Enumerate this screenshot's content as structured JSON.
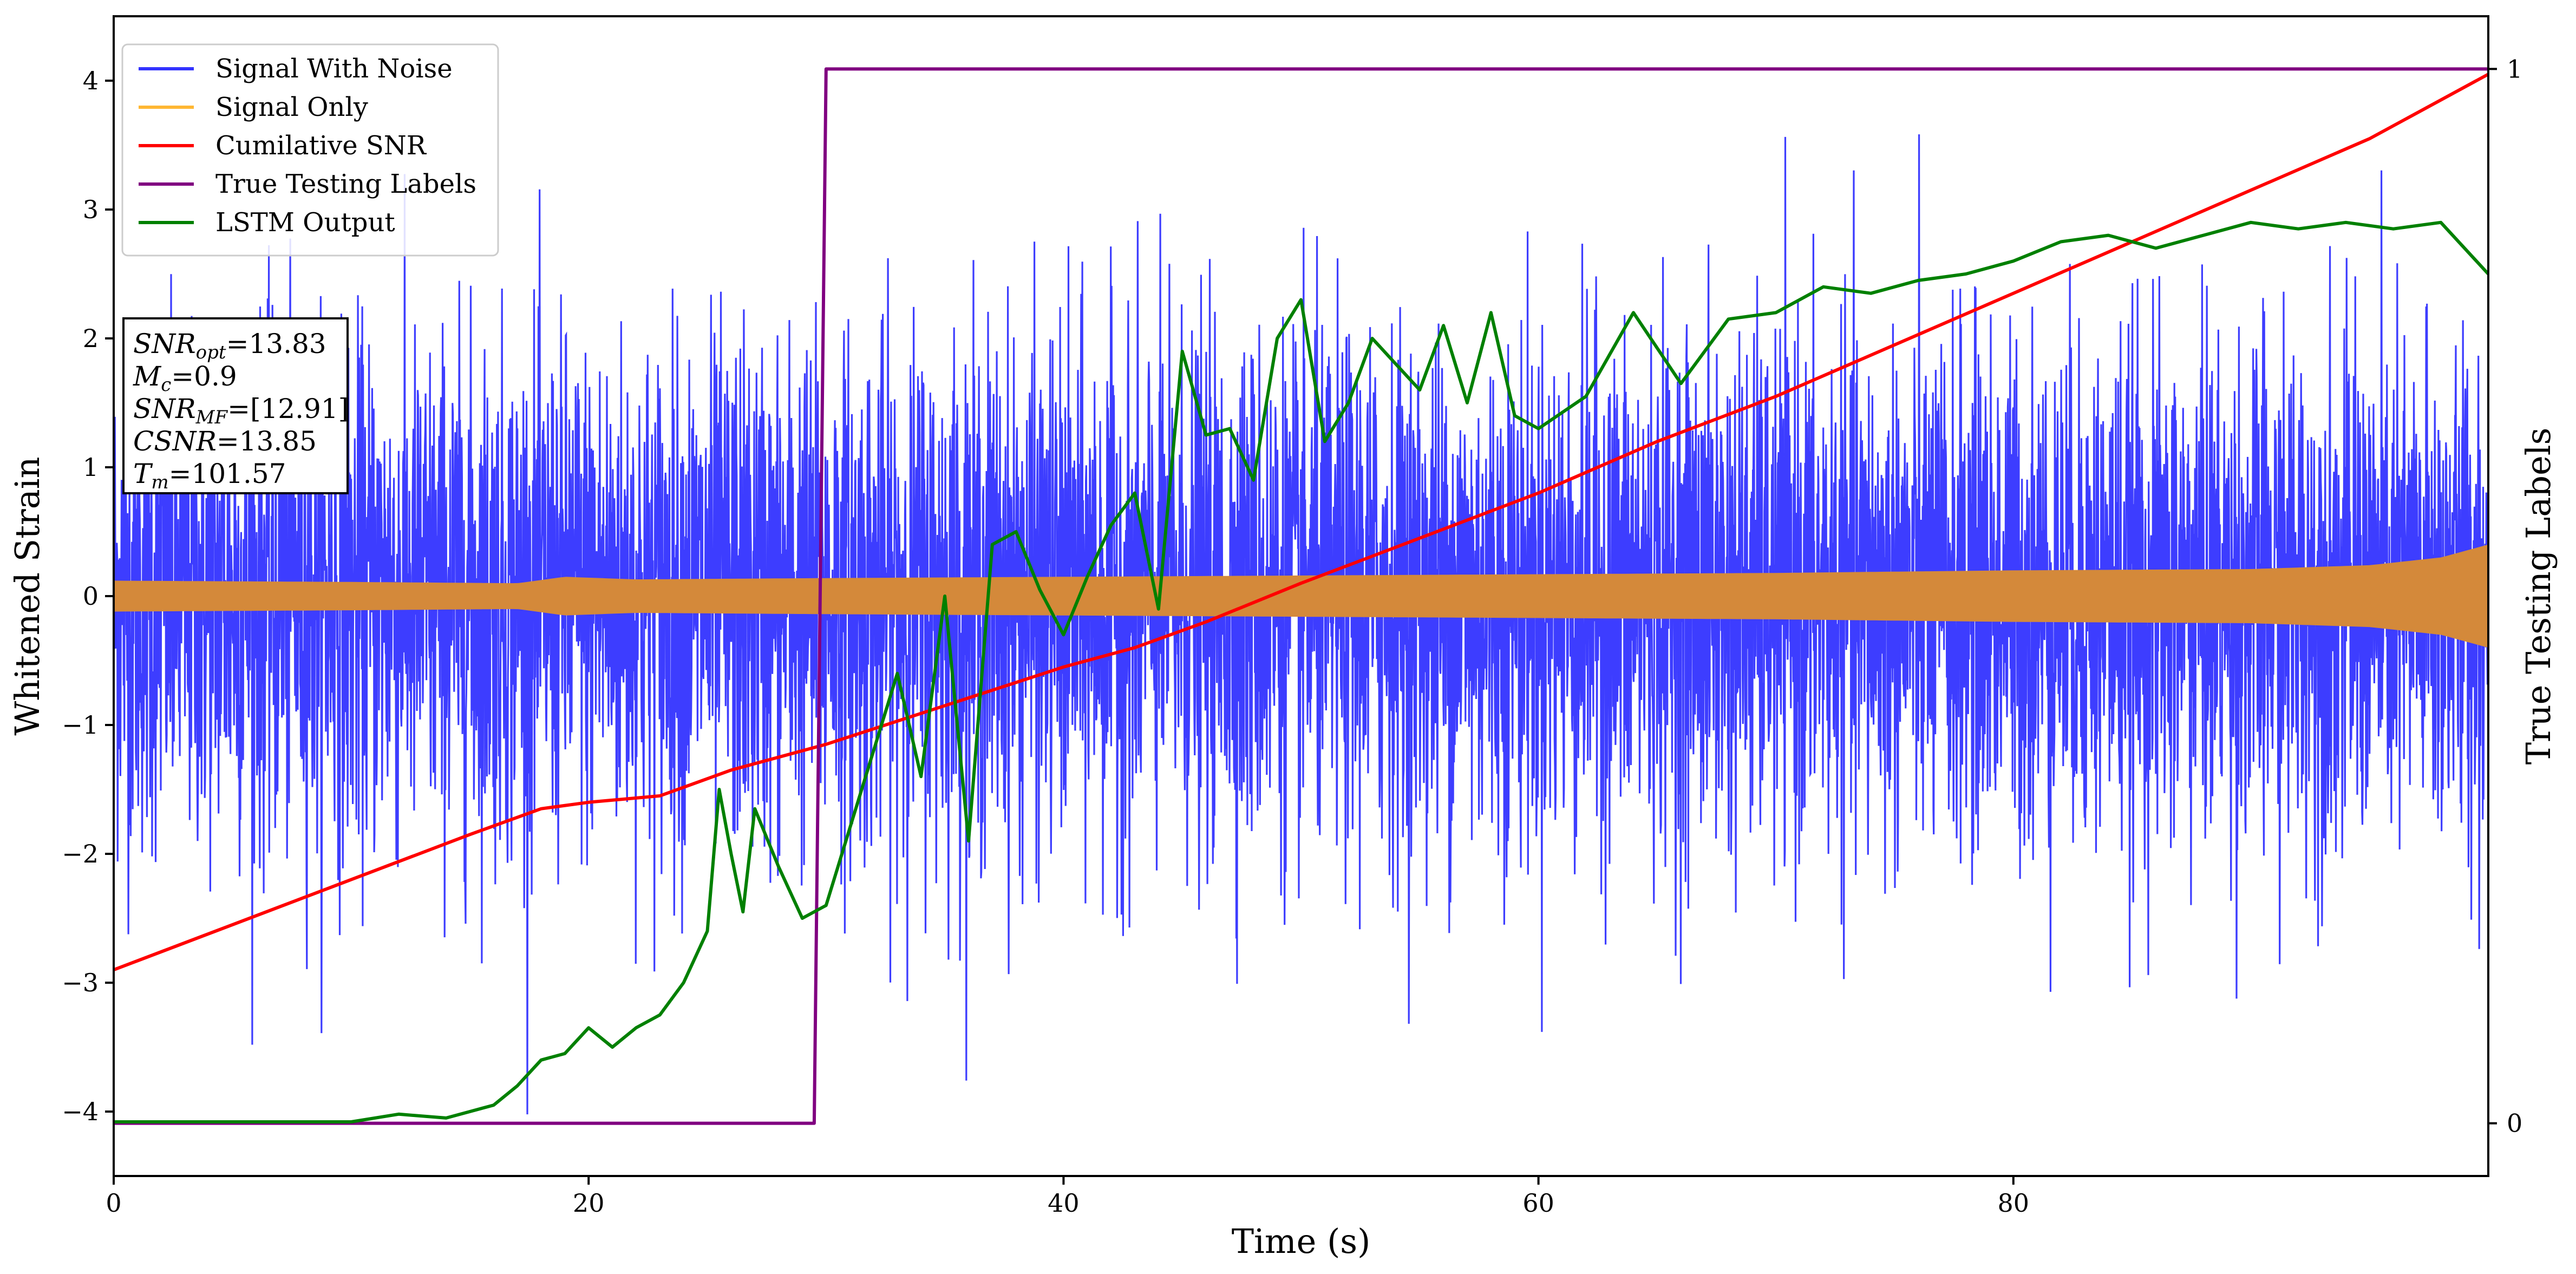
{
  "chart_data": {
    "type": "line",
    "title": "",
    "xlabel": "Time (s)",
    "ylabel": "Whitened Strain",
    "y2label": "True Testing Labels",
    "xlim": [
      0,
      100
    ],
    "ylim": [
      -4.5,
      4.5
    ],
    "y2lim": [
      -0.05,
      1.05
    ],
    "x_ticks": [
      0,
      20,
      40,
      60,
      80
    ],
    "y_ticks": [
      -4,
      -3,
      -2,
      -1,
      0,
      1,
      2,
      3,
      4
    ],
    "y2_ticks": [
      0,
      1
    ],
    "grid": false,
    "legend_position": "top-left",
    "legend": [
      {
        "label": "Signal With Noise",
        "color": "#3333ff"
      },
      {
        "label": "Signal Only",
        "color": "#ffb733"
      },
      {
        "label": "Cumilative SNR",
        "color": "#ff0000"
      },
      {
        "label": "True Testing Labels",
        "color": "#800080"
      },
      {
        "label": "LSTM Output",
        "color": "#008000"
      }
    ],
    "info_box": {
      "snr_opt": {
        "main": "SNR",
        "sub": "opt",
        "value": "=13.83"
      },
      "mc": {
        "main": "M",
        "sub": "c",
        "value": "=0.9"
      },
      "snr_mf": {
        "main": "SNR",
        "sub": "MF",
        "value": "=[12.91]"
      },
      "csnr": {
        "main": "CSNR",
        "value": "=13.85"
      },
      "tm": {
        "main": "T",
        "sub": "m",
        "value": "=101.57"
      }
    },
    "series": [
      {
        "name": "Signal With Noise",
        "axis": "left",
        "color": "#3333ff",
        "style": "dense-noise",
        "noise_std": 1.0,
        "noise_mean": 0.0,
        "x_range": [
          0,
          100
        ],
        "y_extent": [
          -4.1,
          3.9
        ]
      },
      {
        "name": "Signal Only",
        "axis": "left",
        "color": "#d4893a",
        "style": "envelope",
        "envelope": {
          "x": [
            0,
            10,
            17,
            19,
            22,
            30,
            40,
            50,
            60,
            70,
            80,
            90,
            95,
            98,
            100
          ],
          "amplitude": [
            0.12,
            0.11,
            0.1,
            0.15,
            0.13,
            0.14,
            0.15,
            0.16,
            0.17,
            0.18,
            0.2,
            0.21,
            0.24,
            0.3,
            0.4
          ]
        }
      },
      {
        "name": "Cumilative SNR",
        "axis": "left",
        "color": "#ff0000",
        "style": "line",
        "x": [
          0,
          5,
          10,
          15,
          18,
          20,
          23,
          26,
          30,
          35,
          40,
          43,
          46,
          50,
          55,
          60,
          65,
          70,
          75,
          80,
          85,
          90,
          95,
          100
        ],
        "y": [
          -2.9,
          -2.55,
          -2.2,
          -1.85,
          -1.65,
          -1.6,
          -1.55,
          -1.35,
          -1.15,
          -0.85,
          -0.55,
          -0.4,
          -0.2,
          0.1,
          0.45,
          0.8,
          1.2,
          1.55,
          1.95,
          2.35,
          2.75,
          3.15,
          3.55,
          4.05
        ]
      },
      {
        "name": "True Testing Labels",
        "axis": "right",
        "color": "#800080",
        "style": "step",
        "x": [
          0,
          29.5,
          30,
          100
        ],
        "y": [
          0,
          0,
          1,
          1
        ]
      },
      {
        "name": "LSTM Output",
        "axis": "left",
        "color": "#008000",
        "style": "line",
        "x": [
          0,
          10,
          12,
          14,
          15,
          16,
          17,
          18,
          19,
          20,
          21,
          22,
          23,
          24,
          25,
          25.5,
          26,
          26.5,
          27,
          28,
          29,
          30,
          31,
          32,
          33,
          34,
          35,
          36,
          37,
          38,
          39,
          40,
          41,
          42,
          43,
          44,
          45,
          46,
          47,
          48,
          49,
          50,
          51,
          52,
          53,
          54,
          55,
          56,
          57,
          58,
          59,
          60,
          62,
          64,
          66,
          68,
          70,
          72,
          74,
          76,
          78,
          80,
          82,
          84,
          86,
          88,
          90,
          92,
          94,
          96,
          98,
          100
        ],
        "y": [
          -4.08,
          -4.08,
          -4.02,
          -4.05,
          -4.0,
          -3.95,
          -3.8,
          -3.6,
          -3.55,
          -3.35,
          -3.5,
          -3.35,
          -3.25,
          -3.0,
          -2.6,
          -1.5,
          -2.0,
          -2.45,
          -1.65,
          -2.1,
          -2.5,
          -2.4,
          -1.8,
          -1.2,
          -0.6,
          -1.4,
          0.0,
          -1.9,
          0.4,
          0.5,
          0.05,
          -0.3,
          0.15,
          0.55,
          0.8,
          -0.1,
          1.9,
          1.25,
          1.3,
          0.9,
          2.0,
          2.3,
          1.2,
          1.5,
          2.0,
          1.8,
          1.6,
          2.1,
          1.5,
          2.2,
          1.4,
          1.3,
          1.55,
          2.2,
          1.65,
          2.15,
          2.2,
          2.4,
          2.35,
          2.45,
          2.5,
          2.6,
          2.75,
          2.8,
          2.7,
          2.8,
          2.9,
          2.85,
          2.9,
          2.85,
          2.9,
          2.5
        ]
      }
    ]
  }
}
